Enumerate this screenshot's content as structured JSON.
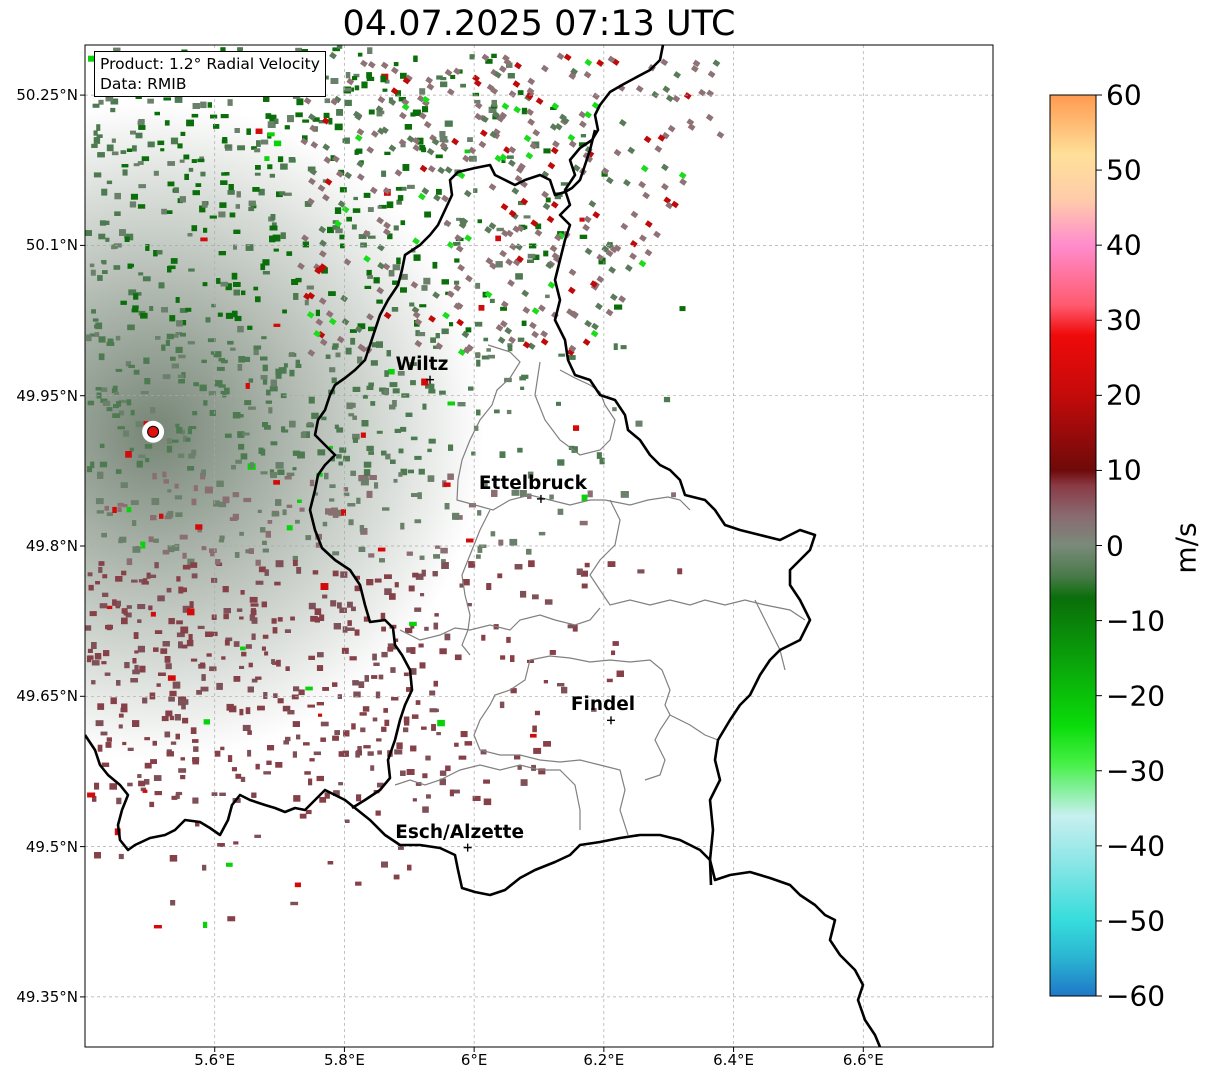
{
  "title": "04.07.2025 07:13 UTC",
  "info_box": {
    "product": "Product: 1.2° Radial Velocity",
    "data_source": "Data: RMIB"
  },
  "map": {
    "extent": {
      "lon_min": 5.4,
      "lon_max": 6.8,
      "lat_min": 49.3,
      "lat_max": 50.3
    },
    "lat_ticks": [
      {
        "value": 50.25,
        "label": "50.25°N"
      },
      {
        "value": 50.1,
        "label": "50.1°N"
      },
      {
        "value": 49.95,
        "label": "49.95°N"
      },
      {
        "value": 49.8,
        "label": "49.8°N"
      },
      {
        "value": 49.65,
        "label": "49.65°N"
      },
      {
        "value": 49.5,
        "label": "49.5°N"
      },
      {
        "value": 49.35,
        "label": "49.35°N"
      }
    ],
    "lon_ticks": [
      {
        "value": 5.6,
        "label": "5.6°E"
      },
      {
        "value": 5.8,
        "label": "5.8°E"
      },
      {
        "value": 6.0,
        "label": "6°E"
      },
      {
        "value": 6.2,
        "label": "6.2°E"
      },
      {
        "value": 6.4,
        "label": "6.4°E"
      },
      {
        "value": 6.6,
        "label": "6.6°E"
      }
    ],
    "radar_site": {
      "lon": 5.505,
      "lat": 49.914,
      "color": "#e01010"
    },
    "cities": [
      {
        "name": "Wiltz",
        "lon": 5.932,
        "lat": 49.966
      },
      {
        "name": "Ettelbruck",
        "lon": 6.103,
        "lat": 49.847
      },
      {
        "name": "Findel",
        "lon": 6.211,
        "lat": 49.626
      },
      {
        "name": "Esch/Alzette",
        "lon": 5.99,
        "lat": 49.499
      }
    ]
  },
  "colorbar": {
    "unit": "m/s",
    "min": -60,
    "max": 60,
    "ticks": [
      {
        "value": 60,
        "label": "60"
      },
      {
        "value": 50,
        "label": "50"
      },
      {
        "value": 40,
        "label": "40"
      },
      {
        "value": 30,
        "label": "30"
      },
      {
        "value": 20,
        "label": "20"
      },
      {
        "value": 10,
        "label": "10"
      },
      {
        "value": 0,
        "label": "0"
      },
      {
        "value": -10,
        "label": "−10"
      },
      {
        "value": -20,
        "label": "−20"
      },
      {
        "value": -30,
        "label": "−30"
      },
      {
        "value": -40,
        "label": "−40"
      },
      {
        "value": -50,
        "label": "−50"
      },
      {
        "value": -60,
        "label": "−60"
      }
    ],
    "stops": [
      {
        "value": -60,
        "color": "#1f78c8"
      },
      {
        "value": -55,
        "color": "#2ab4d2"
      },
      {
        "value": -50,
        "color": "#36dcdc"
      },
      {
        "value": -42,
        "color": "#8ee6e6"
      },
      {
        "value": -36,
        "color": "#c8f0f0"
      },
      {
        "value": -33,
        "color": "#8ef0a8"
      },
      {
        "value": -29,
        "color": "#46f046"
      },
      {
        "value": -24,
        "color": "#0adc0a"
      },
      {
        "value": -15,
        "color": "#0aa00a"
      },
      {
        "value": -7,
        "color": "#0a6e0a"
      },
      {
        "value": -4,
        "color": "#4a7a4a"
      },
      {
        "value": 0,
        "color": "#7a8a7a"
      },
      {
        "value": 4,
        "color": "#8a6a70"
      },
      {
        "value": 8,
        "color": "#8a3a44"
      },
      {
        "value": 10,
        "color": "#6e0a0a"
      },
      {
        "value": 20,
        "color": "#c40a0a"
      },
      {
        "value": 28,
        "color": "#f00a0a"
      },
      {
        "value": 32,
        "color": "#ff5a6e"
      },
      {
        "value": 40,
        "color": "#ff8ccd"
      },
      {
        "value": 46,
        "color": "#ffccaa"
      },
      {
        "value": 52,
        "color": "#ffe09a"
      },
      {
        "value": 60,
        "color": "#ff9a50"
      }
    ]
  }
}
